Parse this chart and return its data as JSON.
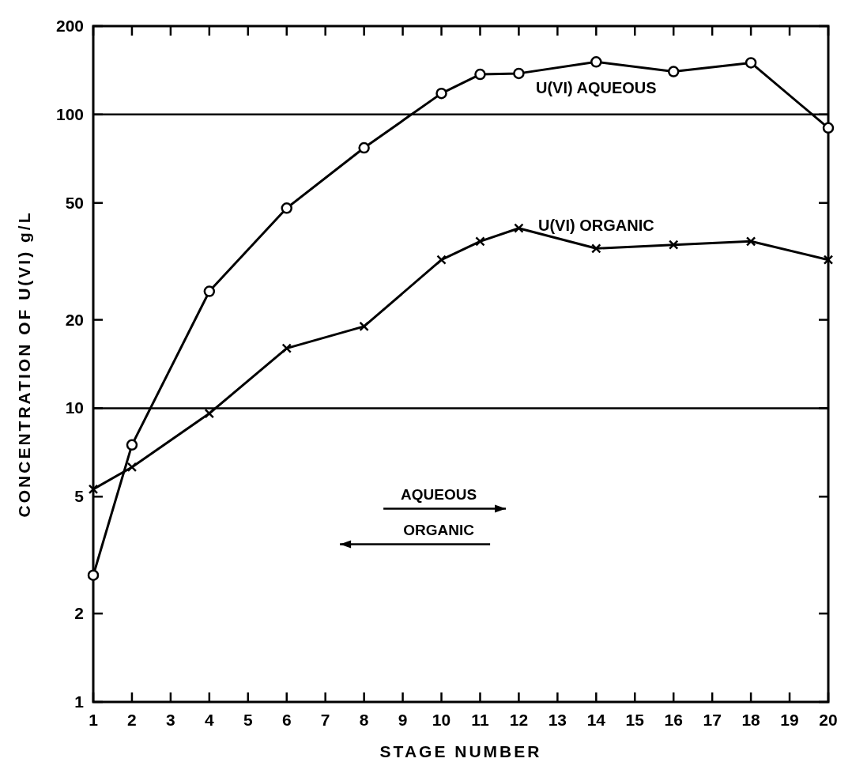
{
  "chart_data": {
    "type": "line",
    "xlabel": "STAGE NUMBER",
    "ylabel": "CONCENTRATION OF U(VI) g/L",
    "xlim": [
      1,
      20
    ],
    "xticks": [
      1,
      2,
      3,
      4,
      5,
      6,
      7,
      8,
      9,
      10,
      11,
      12,
      13,
      14,
      15,
      16,
      17,
      18,
      19,
      20
    ],
    "ylim": [
      1,
      200
    ],
    "yticks": [
      1,
      2,
      5,
      10,
      20,
      50,
      100,
      200
    ],
    "log": true,
    "grid": false,
    "ref_lines": [
      {
        "axis": "y",
        "value": 10
      },
      {
        "axis": "y",
        "value": 100
      }
    ],
    "annotations": [
      "AQUEOUS",
      "ORGANIC"
    ],
    "series": [
      {
        "name": "U(VI) AQUEOUS",
        "color": "#000000",
        "marker": "circle",
        "x": [
          1,
          2,
          4,
          6,
          8,
          10,
          11,
          12,
          14,
          16,
          18,
          20
        ],
        "values": [
          2.7,
          7.5,
          25,
          48,
          77,
          118,
          137,
          138,
          151,
          140,
          150,
          90
        ]
      },
      {
        "name": "U(VI) ORGANIC",
        "color": "#000000",
        "marker": "cross",
        "x": [
          1,
          2,
          4,
          6,
          8,
          10,
          11,
          12,
          14,
          16,
          18,
          20
        ],
        "values": [
          5.3,
          6.3,
          9.6,
          16,
          19,
          32,
          37,
          41,
          35,
          36,
          37,
          32
        ]
      }
    ]
  }
}
